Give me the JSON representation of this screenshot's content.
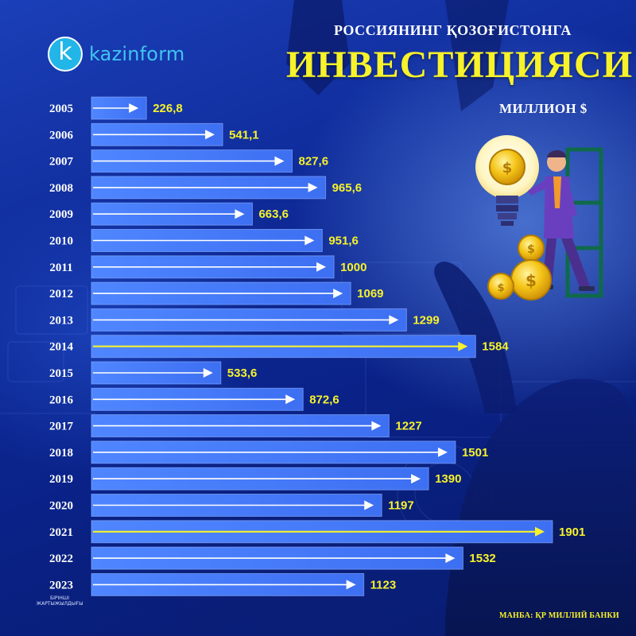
{
  "brand": {
    "logo_letter": "k",
    "logo_text": "kazinform"
  },
  "header": {
    "title_line1": "РОССИЯНИНГ ҚОЗОҒИСТОНГА",
    "title_line2": "ИНВЕСТИЦИЯСИ",
    "unit": "МИЛЛИОН $"
  },
  "footer": {
    "source": "МАНБА: ҚР МИЛЛИЙ БАНКИ",
    "note_line1": "БІРІНШІ",
    "note_line2": "ЖАРТЫЖЫЛДЫҒЫ"
  },
  "colors": {
    "background": "#0e2a98",
    "bar": "#3d6ff2",
    "value_text": "#f7f22a",
    "arrow_default": "#ffffff",
    "arrow_highlight": "#f7f22a",
    "logo": "#22b5e8"
  },
  "chart_data": {
    "type": "bar",
    "orientation": "horizontal",
    "title": "РОССИЯНИНГ ҚОЗОҒИСТОНГА ИНВЕСТИЦИЯСИ",
    "unit": "МИЛЛИОН $",
    "categories": [
      "2005",
      "2006",
      "2007",
      "2008",
      "2009",
      "2010",
      "2011",
      "2012",
      "2013",
      "2014",
      "2015",
      "2016",
      "2017",
      "2018",
      "2019",
      "2020",
      "2021",
      "2022",
      "2023"
    ],
    "values": [
      226.8,
      541.1,
      827.6,
      965.6,
      663.6,
      951.6,
      1000,
      1069,
      1299,
      1584,
      533.6,
      872.6,
      1227,
      1501,
      1390,
      1197,
      1901,
      1532,
      1123
    ],
    "value_labels": [
      "226,8",
      "541,1",
      "827,6",
      "965,6",
      "663,6",
      "951,6",
      "1000",
      "1069",
      "1299",
      "1584",
      "533,6",
      "872,6",
      "1227",
      "1501",
      "1390",
      "1197",
      "1901",
      "1532",
      "1123"
    ],
    "highlighted": [
      "2014",
      "2021"
    ],
    "xlim": [
      0,
      1901
    ],
    "grid": false,
    "legend": "none"
  }
}
